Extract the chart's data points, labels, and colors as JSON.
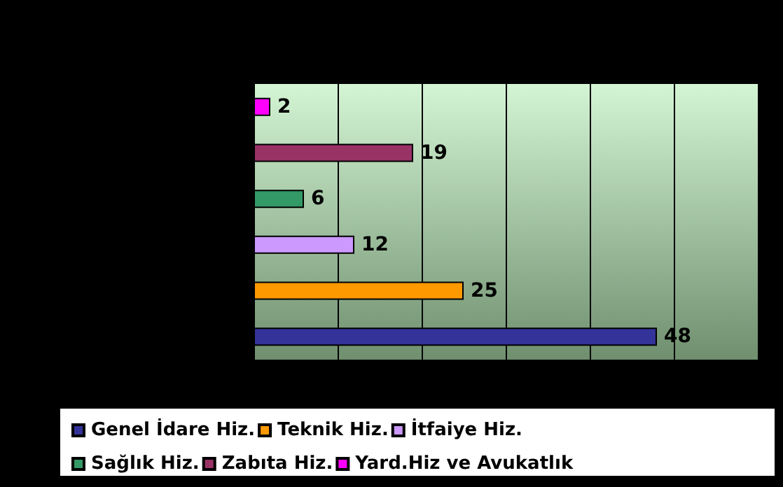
{
  "chart_data": {
    "type": "bar",
    "orientation": "horizontal",
    "categories": [
      null,
      null,
      null,
      null,
      null,
      null
    ],
    "series": [
      {
        "name": "Genel İdare Hiz.",
        "color": "#333399",
        "values": [
          null,
          null,
          null,
          null,
          null,
          48
        ]
      },
      {
        "name": "Teknik Hiz.",
        "color": "#ff9900",
        "values": [
          null,
          null,
          null,
          null,
          25,
          null
        ]
      },
      {
        "name": "İtfaiye Hiz.",
        "color": "#cc99ff",
        "values": [
          null,
          null,
          null,
          12,
          null,
          null
        ]
      },
      {
        "name": "Sağlık Hiz.",
        "color": "#339966",
        "values": [
          null,
          null,
          6,
          null,
          null,
          null
        ]
      },
      {
        "name": "Zabıta Hiz.",
        "color": "#993366",
        "values": [
          null,
          19,
          null,
          null,
          null,
          null
        ]
      },
      {
        "name": "Yard.Hiz ve Avukatlık",
        "color": "#ff00ff",
        "values": [
          2,
          null,
          null,
          null,
          null,
          null
        ]
      }
    ],
    "xlim": [
      0,
      60
    ],
    "xticks": [
      {
        "value": 0,
        "label": null
      },
      {
        "value": 10,
        "label": null
      },
      {
        "value": 20,
        "label": null
      },
      {
        "value": 30,
        "label": null
      },
      {
        "value": 40,
        "label": null
      },
      {
        "value": 50,
        "label": null
      },
      {
        "value": 60,
        "label": null
      }
    ],
    "stacked": true,
    "grid": "x",
    "data_labels": true,
    "legend": "bottom"
  }
}
